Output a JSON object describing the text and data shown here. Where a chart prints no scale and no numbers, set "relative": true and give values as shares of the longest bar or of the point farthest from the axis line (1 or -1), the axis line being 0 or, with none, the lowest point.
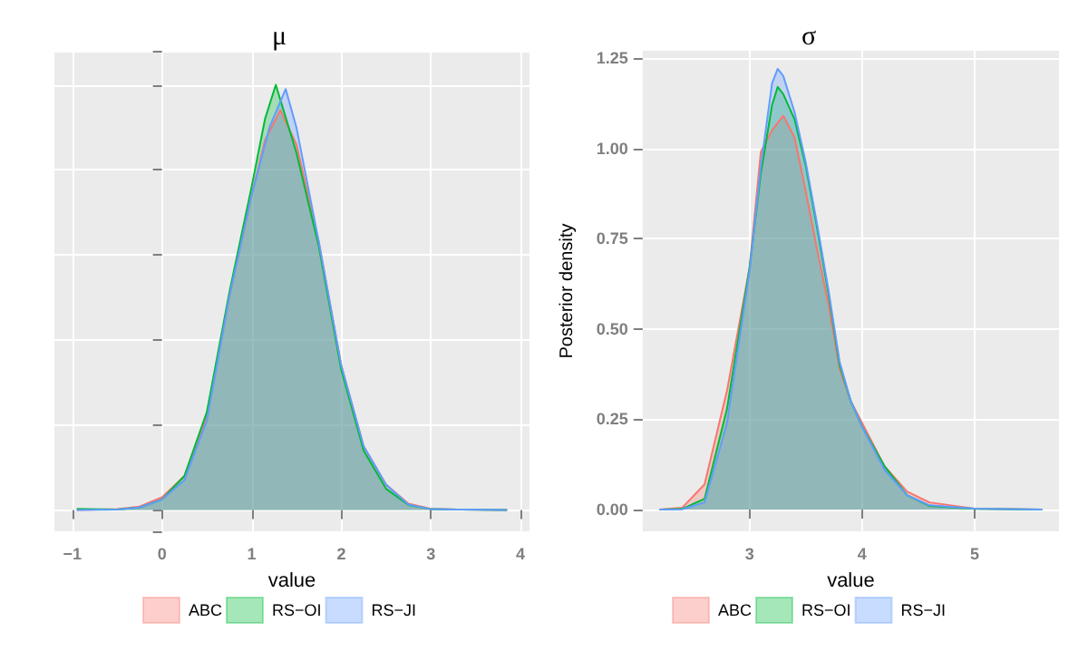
{
  "chart_data": [
    {
      "type": "area",
      "title": "μ",
      "xlabel": "value",
      "relative": true,
      "tick_labels": "x",
      "grid": true,
      "legend": "bottom",
      "marker": "none",
      "xlim": [
        -1.2,
        4.1
      ],
      "xticks": [
        {
          "value": -1,
          "label": "−1"
        },
        0,
        1,
        2,
        3,
        4
      ],
      "series": [
        {
          "name": "ABC",
          "color": "#f8766d",
          "x": [
            -0.95,
            -0.5,
            -0.25,
            0,
            0.25,
            0.5,
            0.75,
            1,
            1.15,
            1.32,
            1.5,
            1.75,
            2,
            2.25,
            2.5,
            2.75,
            3,
            3.3,
            3.85
          ],
          "values": [
            0,
            0.002,
            0.008,
            0.03,
            0.08,
            0.22,
            0.5,
            0.74,
            0.87,
            0.94,
            0.86,
            0.63,
            0.34,
            0.15,
            0.06,
            0.015,
            0.003,
            0.001,
            0
          ]
        },
        {
          "name": "RS−OI",
          "color": "#00ba38",
          "x": [
            -0.95,
            -0.5,
            -0.25,
            0,
            0.25,
            0.5,
            0.75,
            1,
            1.15,
            1.27,
            1.5,
            1.75,
            2,
            2.25,
            2.5,
            2.75,
            3,
            3.3,
            3.85
          ],
          "values": [
            0.003,
            0.001,
            0.006,
            0.025,
            0.08,
            0.23,
            0.51,
            0.76,
            0.92,
            1,
            0.84,
            0.62,
            0.33,
            0.14,
            0.05,
            0.012,
            0.002,
            0.001,
            0
          ]
        },
        {
          "name": "RS−JI",
          "color": "#619cff",
          "x": [
            -0.95,
            -0.5,
            -0.25,
            0,
            0.25,
            0.5,
            0.75,
            1,
            1.2,
            1.38,
            1.5,
            1.75,
            2,
            2.25,
            2.5,
            2.75,
            3,
            3.3,
            3.85
          ],
          "values": [
            0,
            0.001,
            0.006,
            0.025,
            0.07,
            0.21,
            0.5,
            0.74,
            0.9,
            0.99,
            0.9,
            0.63,
            0.34,
            0.15,
            0.06,
            0.013,
            0.002,
            0.001,
            0
          ]
        }
      ]
    },
    {
      "type": "area",
      "title": "σ",
      "xlabel": "value",
      "ylabel": "Posterior density",
      "grid": true,
      "legend": "bottom",
      "marker": "none",
      "xlim": [
        2.05,
        5.75
      ],
      "xticks": [
        3,
        4,
        5
      ],
      "ylim": [
        -0.06,
        1.27
      ],
      "yticks": [
        {
          "value": 0,
          "label": "0.00"
        },
        {
          "value": 0.25,
          "label": "0.25"
        },
        {
          "value": 0.5,
          "label": "0.50"
        },
        {
          "value": 0.75,
          "label": "0.75"
        },
        {
          "value": 1,
          "label": "1.00"
        },
        {
          "value": 1.25,
          "label": "1.25"
        }
      ],
      "series": [
        {
          "name": "ABC",
          "color": "#f8766d",
          "x": [
            2.2,
            2.4,
            2.6,
            2.8,
            3,
            3.1,
            3.2,
            3.3,
            3.4,
            3.5,
            3.6,
            3.7,
            3.8,
            3.9,
            4,
            4.2,
            4.4,
            4.6,
            5,
            5.6
          ],
          "values": [
            0,
            0.005,
            0.07,
            0.33,
            0.67,
            0.99,
            1.05,
            1.09,
            1.03,
            0.88,
            0.72,
            0.57,
            0.39,
            0.3,
            0.24,
            0.12,
            0.05,
            0.02,
            0.003,
            0
          ]
        },
        {
          "name": "RS−OI",
          "color": "#00ba38",
          "x": [
            2.2,
            2.4,
            2.6,
            2.8,
            3,
            3.1,
            3.2,
            3.25,
            3.3,
            3.4,
            3.5,
            3.6,
            3.7,
            3.8,
            3.9,
            4,
            4.2,
            4.4,
            4.6,
            5,
            5.6
          ],
          "values": [
            0,
            0.002,
            0.03,
            0.28,
            0.67,
            0.93,
            1.12,
            1.17,
            1.15,
            1.08,
            0.95,
            0.78,
            0.6,
            0.4,
            0.3,
            0.23,
            0.12,
            0.04,
            0.01,
            0.002,
            0
          ]
        },
        {
          "name": "RS−JI",
          "color": "#619cff",
          "x": [
            2.2,
            2.4,
            2.6,
            2.8,
            3,
            3.1,
            3.2,
            3.25,
            3.3,
            3.4,
            3.5,
            3.6,
            3.7,
            3.8,
            3.9,
            4,
            4.2,
            4.4,
            4.6,
            5,
            5.6
          ],
          "values": [
            0,
            0.001,
            0.02,
            0.24,
            0.66,
            0.95,
            1.18,
            1.22,
            1.2,
            1.1,
            0.96,
            0.79,
            0.61,
            0.41,
            0.3,
            0.23,
            0.11,
            0.04,
            0.012,
            0.003,
            0
          ]
        }
      ]
    }
  ]
}
